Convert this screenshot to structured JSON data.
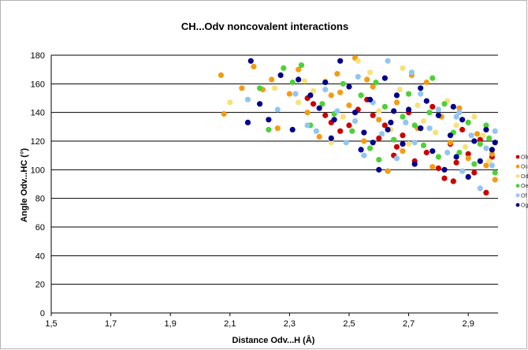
{
  "chart_data": {
    "type": "scatter",
    "title": "CH...Odv noncovalent interactions",
    "xlabel": "Distance Odv...H (Å)",
    "ylabel": "Angle Odv...HC (°)",
    "xlim": [
      1.5,
      3.0
    ],
    "ylim": [
      0,
      180
    ],
    "xticks": [
      "1,5",
      "1,7",
      "1,9",
      "2,1",
      "2,3",
      "2,5",
      "2,7",
      "2,9"
    ],
    "xtick_values": [
      1.5,
      1.7,
      1.9,
      2.1,
      2.3,
      2.5,
      2.7,
      2.9
    ],
    "yticks": [
      "0",
      "20",
      "40",
      "60",
      "80",
      "100",
      "120",
      "140",
      "160",
      "180"
    ],
    "ytick_values": [
      0,
      20,
      40,
      60,
      80,
      100,
      120,
      140,
      160,
      180
    ],
    "grid": "horizontal major gridlines",
    "legend_position": "right (partially cut off)",
    "series": [
      {
        "name": "Ob",
        "color": "#cc0000",
        "points": [
          [
            2.36,
            150
          ],
          [
            2.38,
            146
          ],
          [
            2.42,
            138
          ],
          [
            2.47,
            127
          ],
          [
            2.5,
            131
          ],
          [
            2.53,
            142
          ],
          [
            2.56,
            149
          ],
          [
            2.6,
            122
          ],
          [
            2.62,
            131
          ],
          [
            2.65,
            110
          ],
          [
            2.68,
            124
          ],
          [
            2.7,
            140
          ],
          [
            2.72,
            106
          ],
          [
            2.74,
            129
          ],
          [
            2.76,
            112
          ],
          [
            2.78,
            144
          ],
          [
            2.8,
            101
          ],
          [
            2.82,
            94
          ],
          [
            2.84,
            118
          ],
          [
            2.86,
            105
          ],
          [
            2.88,
            128
          ],
          [
            2.9,
            111
          ],
          [
            2.92,
            98
          ],
          [
            2.94,
            121
          ],
          [
            2.96,
            84
          ],
          [
            2.98,
            109
          ],
          [
            2.58,
            138
          ],
          [
            2.44,
            133
          ],
          [
            2.66,
            116
          ],
          [
            2.85,
            92
          ]
        ]
      },
      {
        "name": "Oc",
        "color": "#f39c12",
        "points": [
          [
            2.07,
            166
          ],
          [
            2.08,
            139
          ],
          [
            2.14,
            157
          ],
          [
            2.18,
            172
          ],
          [
            2.21,
            156
          ],
          [
            2.24,
            163
          ],
          [
            2.26,
            129
          ],
          [
            2.3,
            153
          ],
          [
            2.33,
            170
          ],
          [
            2.36,
            140
          ],
          [
            2.4,
            123
          ],
          [
            2.44,
            152
          ],
          [
            2.46,
            167
          ],
          [
            2.5,
            145
          ],
          [
            2.52,
            178
          ],
          [
            2.55,
            120
          ],
          [
            2.58,
            158
          ],
          [
            2.6,
            135
          ],
          [
            2.63,
            99
          ],
          [
            2.66,
            147
          ],
          [
            2.68,
            113
          ],
          [
            2.71,
            166
          ],
          [
            2.73,
            129
          ],
          [
            2.76,
            161
          ],
          [
            2.78,
            102
          ],
          [
            2.81,
            137
          ],
          [
            2.84,
            119
          ],
          [
            2.87,
            143
          ],
          [
            2.9,
            108
          ],
          [
            2.93,
            125
          ],
          [
            2.96,
            103
          ],
          [
            2.99,
            93
          ],
          [
            2.98,
            111
          ],
          [
            2.56,
            163
          ],
          [
            2.47,
            154
          ]
        ]
      },
      {
        "name": "Od",
        "color": "#f7e27a",
        "points": [
          [
            2.1,
            147
          ],
          [
            2.25,
            157
          ],
          [
            2.33,
            147
          ],
          [
            2.38,
            155
          ],
          [
            2.42,
            162
          ],
          [
            2.48,
            137
          ],
          [
            2.53,
            176
          ],
          [
            2.57,
            168
          ],
          [
            2.6,
            141
          ],
          [
            2.64,
            128
          ],
          [
            2.67,
            156
          ],
          [
            2.7,
            118
          ],
          [
            2.73,
            145
          ],
          [
            2.75,
            134
          ],
          [
            2.79,
            126
          ],
          [
            2.83,
            148
          ],
          [
            2.86,
            131
          ],
          [
            2.89,
            116
          ],
          [
            2.92,
            137
          ],
          [
            2.95,
            124
          ],
          [
            2.97,
            106
          ],
          [
            2.68,
            171
          ],
          [
            2.44,
            119
          ],
          [
            2.35,
            162
          ]
        ]
      },
      {
        "name": "Oe",
        "color": "#4cd137",
        "points": [
          [
            2.2,
            157
          ],
          [
            2.23,
            128
          ],
          [
            2.28,
            171
          ],
          [
            2.31,
            161
          ],
          [
            2.34,
            173
          ],
          [
            2.37,
            131
          ],
          [
            2.41,
            146
          ],
          [
            2.45,
            139
          ],
          [
            2.48,
            160
          ],
          [
            2.51,
            127
          ],
          [
            2.54,
            152
          ],
          [
            2.57,
            115
          ],
          [
            2.59,
            161
          ],
          [
            2.62,
            144
          ],
          [
            2.65,
            121
          ],
          [
            2.68,
            137
          ],
          [
            2.7,
            153
          ],
          [
            2.72,
            131
          ],
          [
            2.75,
            117
          ],
          [
            2.77,
            140
          ],
          [
            2.8,
            109
          ],
          [
            2.82,
            146
          ],
          [
            2.85,
            126
          ],
          [
            2.87,
            112
          ],
          [
            2.9,
            133
          ],
          [
            2.92,
            104
          ],
          [
            2.94,
            118
          ],
          [
            2.96,
            131
          ],
          [
            2.99,
            98
          ],
          [
            2.97,
            122
          ],
          [
            2.78,
            164
          ],
          [
            2.6,
            107
          ]
        ]
      },
      {
        "name": "Of",
        "color": "#92c5f0",
        "points": [
          [
            2.16,
            149
          ],
          [
            2.26,
            142
          ],
          [
            2.32,
            153
          ],
          [
            2.36,
            131
          ],
          [
            2.39,
            127
          ],
          [
            2.42,
            156
          ],
          [
            2.46,
            141
          ],
          [
            2.49,
            119
          ],
          [
            2.52,
            134
          ],
          [
            2.55,
            110
          ],
          [
            2.58,
            147
          ],
          [
            2.61,
            125
          ],
          [
            2.63,
            176
          ],
          [
            2.66,
            108
          ],
          [
            2.69,
            133
          ],
          [
            2.72,
            119
          ],
          [
            2.74,
            153
          ],
          [
            2.77,
            129
          ],
          [
            2.8,
            142
          ],
          [
            2.83,
            112
          ],
          [
            2.86,
            137
          ],
          [
            2.88,
            99
          ],
          [
            2.91,
            124
          ],
          [
            2.94,
            87
          ],
          [
            2.96,
            115
          ],
          [
            2.99,
            127
          ],
          [
            2.98,
            103
          ],
          [
            2.71,
            168
          ],
          [
            2.53,
            165
          ],
          [
            2.87,
            140
          ]
        ]
      },
      {
        "name": "Og",
        "color": "#00008b",
        "points": [
          [
            2.17,
            176
          ],
          [
            2.16,
            133
          ],
          [
            2.2,
            146
          ],
          [
            2.23,
            135
          ],
          [
            2.27,
            166
          ],
          [
            2.31,
            128
          ],
          [
            2.33,
            163
          ],
          [
            2.37,
            152
          ],
          [
            2.4,
            143
          ],
          [
            2.42,
            161
          ],
          [
            2.44,
            122
          ],
          [
            2.47,
            176
          ],
          [
            2.5,
            158
          ],
          [
            2.52,
            140
          ],
          [
            2.54,
            114
          ],
          [
            2.57,
            149
          ],
          [
            2.6,
            100
          ],
          [
            2.62,
            164
          ],
          [
            2.64,
            133
          ],
          [
            2.66,
            152
          ],
          [
            2.68,
            118
          ],
          [
            2.7,
            142
          ],
          [
            2.72,
            104
          ],
          [
            2.74,
            129
          ],
          [
            2.76,
            148
          ],
          [
            2.78,
            113
          ],
          [
            2.8,
            138
          ],
          [
            2.82,
            100
          ],
          [
            2.84,
            124
          ],
          [
            2.86,
            109
          ],
          [
            2.88,
            135
          ],
          [
            2.9,
            95
          ],
          [
            2.92,
            120
          ],
          [
            2.94,
            106
          ],
          [
            2.96,
            128
          ],
          [
            2.98,
            114
          ],
          [
            2.99,
            119
          ],
          [
            2.65,
            141
          ],
          [
            2.55,
            126
          ],
          [
            2.45,
            135
          ],
          [
            2.58,
            119
          ],
          [
            2.63,
            128
          ],
          [
            2.74,
            157
          ],
          [
            2.85,
            144
          ]
        ]
      }
    ]
  }
}
